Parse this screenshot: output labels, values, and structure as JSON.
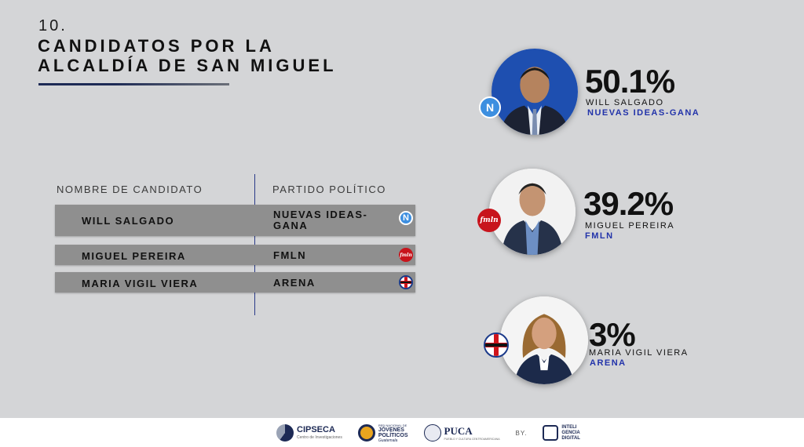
{
  "slide": {
    "number": "10.",
    "title_line1": "CANDIDATOS POR LA",
    "title_line2": "ALCALDÍA DE SAN MIGUEL"
  },
  "table": {
    "headers": {
      "name": "NOMBRE DE CANDIDATO",
      "party": "PARTIDO POLÍTICO"
    },
    "rows": [
      {
        "name": "WILL SALGADO",
        "party": "NUEVAS IDEAS-GANA",
        "party_line1": "NUEVAS IDEAS-",
        "party_line2": "GANA",
        "logo": "nuevas-ideas-logo"
      },
      {
        "name": "MIGUEL PEREIRA",
        "party": "FMLN",
        "logo": "fmln-logo"
      },
      {
        "name": "MARIA VIGIL VIERA",
        "party": "ARENA",
        "logo": "arena-logo"
      }
    ]
  },
  "candidates": [
    {
      "percent": "50.1%",
      "name": "WILL SALGADO",
      "party": "NUEVAS IDEAS-GANA",
      "badge_text": "N",
      "logo": "nuevas-ideas-logo"
    },
    {
      "percent": "39.2%",
      "name": "MIGUEL PEREIRA",
      "party": "FMLN",
      "badge_text": "fmln",
      "logo": "fmln-logo"
    },
    {
      "percent": "3%",
      "name": "MARIA VIGIL VIERA",
      "party": "ARENA",
      "badge_text": "ARENA",
      "logo": "arena-logo"
    }
  ],
  "footer": {
    "logos": [
      {
        "name": "CIPSECA",
        "subtitle": "Centro de Investigaciones"
      },
      {
        "name_line1": "RED NACIONAL DE",
        "name_line2": "JÓVENES",
        "name_line3": "POLÍTICOS",
        "name_line4": "Guatemala"
      },
      {
        "name": "PUCA",
        "subtitle": "PUEBLO Y CULTURA CENTROAMERICANA"
      }
    ],
    "by_label": "BY.",
    "brand_line1": "INTELI",
    "brand_line2": "GENCIA",
    "brand_line3": "DIGITAL"
  },
  "colors": {
    "background": "#d4d5d7",
    "row_fill": "#8f8f8f",
    "party_text": "#2233aa",
    "nuevas_ideas": "#3d8fe0",
    "fmln": "#c8141c",
    "arena_blue": "#1b3a8a"
  }
}
